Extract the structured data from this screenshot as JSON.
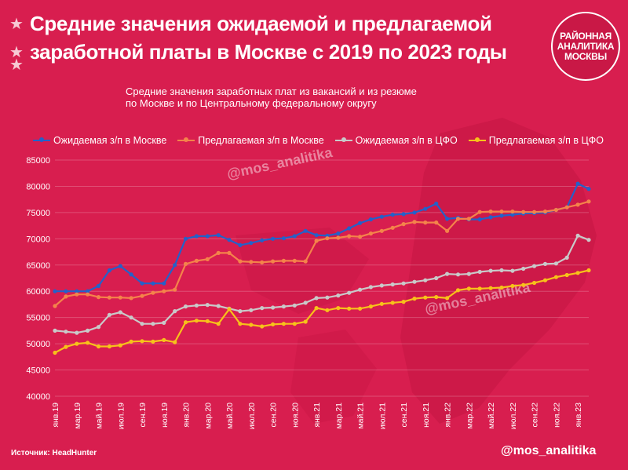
{
  "header": {
    "title_line_1": "Средние значения ожидаемой и предлагаемой",
    "title_line_2": "заработной платы в Москве с 2019 по 2023 годы"
  },
  "logo": {
    "line_1": "РАЙОННАЯ",
    "line_2": "АНАЛИТИКА",
    "line_3": "МОСКВЫ"
  },
  "watermark": "@mos_analitika",
  "footer": {
    "source": "Источник: HeadHunter",
    "handle": "@mos_analitika"
  },
  "chart_data": {
    "type": "line",
    "subtitle_line_1": "Средние значения заработных плат из вакансий и из резюме",
    "subtitle_line_2": "по Москве и по Центральному федеральному округу",
    "ylim": [
      40000,
      85000
    ],
    "yticks": [
      "40000",
      "45000",
      "50000",
      "55000",
      "60000",
      "65000",
      "70000",
      "75000",
      "80000",
      "85000"
    ],
    "grid": true,
    "legend": "top",
    "x": [
      "янв.19",
      "фев.19",
      "мар.19",
      "апр.19",
      "май.19",
      "июн.19",
      "июл.19",
      "авг.19",
      "сен.19",
      "окт.19",
      "ноя.19",
      "дек.19",
      "янв.20",
      "фев.20",
      "мар.20",
      "апр.20",
      "май.20",
      "июн.20",
      "июл.20",
      "авг.20",
      "сен.20",
      "окт.20",
      "ноя.20",
      "дек.20",
      "янв.21",
      "фев.21",
      "мар.21",
      "апр.21",
      "май.21",
      "июн.21",
      "июл.21",
      "авг.21",
      "сен.21",
      "окт.21",
      "ноя.21",
      "дек.21",
      "янв.22",
      "фев.22",
      "мар.22",
      "апр.22",
      "май.22",
      "июн.22",
      "июл.22",
      "авг.22",
      "сен.22",
      "окт.22",
      "ноя.22",
      "дек.22",
      "янв.23",
      "фев.23"
    ],
    "xtick_labels": [
      "янв.19",
      "мар.19",
      "май.19",
      "июл.19",
      "сен.19",
      "ноя.19",
      "янв.20",
      "мар.20",
      "май.20",
      "июл.20",
      "сен.20",
      "ноя.20",
      "янв.21",
      "мар.21",
      "май.21",
      "июл.21",
      "сен.21",
      "ноя.21",
      "янв.22",
      "мар.22",
      "май.22",
      "июл.22",
      "сен.22",
      "ноя.22",
      "янв.23"
    ],
    "series": [
      {
        "name": "Ожидаемая з/п в Москве",
        "color": "#2461c9",
        "values": [
          60000,
          60000,
          60000,
          60000,
          61000,
          64000,
          64800,
          63200,
          61500,
          61500,
          61500,
          65000,
          70000,
          70500,
          70500,
          70700,
          69800,
          68800,
          69200,
          69700,
          70000,
          70100,
          70500,
          71500,
          70700,
          70600,
          71000,
          72000,
          73000,
          73700,
          74200,
          74600,
          74700,
          75000,
          75700,
          76700,
          73800,
          74000,
          73700,
          73700,
          74100,
          74400,
          74600,
          74800,
          74900,
          75000,
          75500,
          76000,
          80500,
          79500
        ]
      },
      {
        "name": "Предлагаемая з/п в Москве",
        "color": "#f4834a",
        "values": [
          57200,
          59000,
          59400,
          59400,
          58900,
          58800,
          58800,
          58700,
          59100,
          59700,
          60000,
          60300,
          65200,
          65800,
          66100,
          67300,
          67300,
          65700,
          65600,
          65500,
          65700,
          65800,
          65800,
          65700,
          69600,
          70100,
          70200,
          70500,
          70400,
          71000,
          71500,
          72100,
          72800,
          73200,
          73100,
          73100,
          71500,
          73800,
          73800,
          75100,
          75200,
          75200,
          75200,
          75100,
          75100,
          75200,
          75500,
          76000,
          76500,
          77100
        ]
      },
      {
        "name": "Ожидаемая з/п в ЦФО",
        "color": "#c9c9c9",
        "values": [
          52500,
          52300,
          52100,
          52500,
          53200,
          55500,
          56000,
          55000,
          53800,
          53800,
          54000,
          56200,
          57100,
          57300,
          57400,
          57200,
          56700,
          56200,
          56400,
          56800,
          56900,
          57100,
          57300,
          57800,
          58700,
          58800,
          59200,
          59700,
          60300,
          60800,
          61100,
          61300,
          61500,
          61800,
          62100,
          62500,
          63300,
          63200,
          63300,
          63700,
          63900,
          64000,
          63900,
          64300,
          64800,
          65200,
          65300,
          66400,
          70600,
          69800
        ]
      },
      {
        "name": "Предлагаемая з/п в ЦФО",
        "color": "#f7c21a",
        "values": [
          48300,
          49400,
          50000,
          50200,
          49500,
          49500,
          49700,
          50400,
          50500,
          50400,
          50700,
          50300,
          54100,
          54400,
          54300,
          53800,
          56600,
          53800,
          53600,
          53300,
          53700,
          53800,
          53800,
          54200,
          56800,
          56400,
          56800,
          56700,
          56700,
          57100,
          57600,
          57800,
          58000,
          58600,
          58800,
          58900,
          58700,
          60200,
          60500,
          60500,
          60600,
          60700,
          61000,
          61200,
          61600,
          62100,
          62700,
          63100,
          63500,
          64000
        ]
      }
    ]
  }
}
